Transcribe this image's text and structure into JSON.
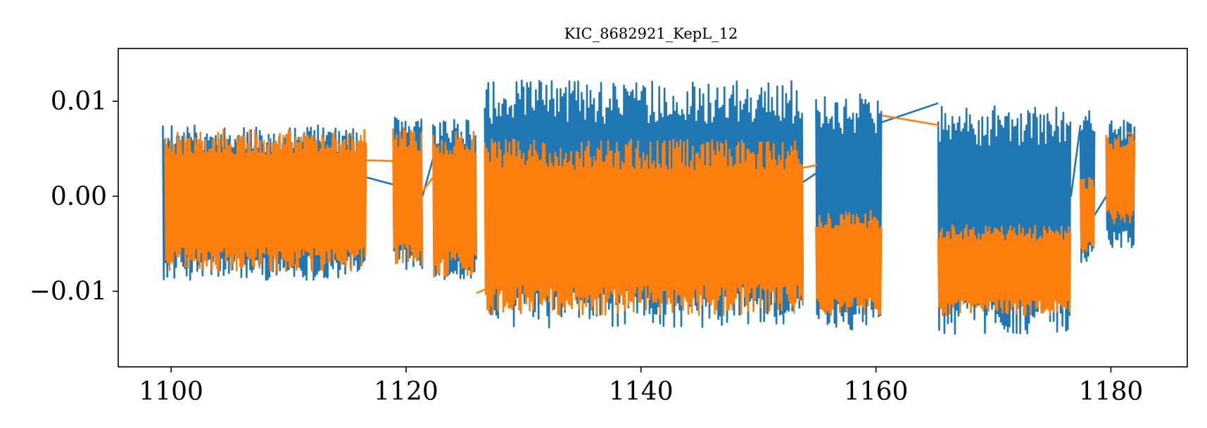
{
  "chart_data": {
    "type": "line",
    "title": "KIC_8682921_KepL_12",
    "xlabel": "",
    "ylabel": "",
    "xlim": [
      1095.5,
      1186.5
    ],
    "ylim": [
      -0.01795,
      0.01555
    ],
    "x_ticks": [
      1100,
      1120,
      1140,
      1160,
      1180
    ],
    "x_tick_labels": [
      "1100",
      "1120",
      "1140",
      "1160",
      "1180"
    ],
    "y_ticks": [
      0.01,
      0.0,
      -0.01
    ],
    "y_tick_labels": [
      "0.01",
      "0.00",
      "−0.01"
    ],
    "grid": false,
    "legend": null,
    "series": [
      {
        "color": "#1f77b4",
        "segments": [
          {
            "x0": 1099.3,
            "x1": 1116.6,
            "high": 0.0075,
            "low": -0.0088
          },
          {
            "x0": 1118.9,
            "x1": 1121.4,
            "high": 0.0083,
            "low": -0.0082
          },
          {
            "x0": 1122.3,
            "x1": 1126.0,
            "high": 0.0082,
            "low": -0.0092
          },
          {
            "x0": 1126.7,
            "x1": 1153.8,
            "high": 0.0122,
            "low": -0.0138
          },
          {
            "x0": 1154.9,
            "x1": 1160.5,
            "high": 0.011,
            "low": -0.014
          },
          {
            "x0": 1165.3,
            "x1": 1176.6,
            "high": 0.0095,
            "low": -0.0145
          },
          {
            "x0": 1177.4,
            "x1": 1178.6,
            "high": 0.009,
            "low": -0.008
          },
          {
            "x0": 1179.6,
            "x1": 1182.0,
            "high": 0.008,
            "low": -0.0055
          }
        ],
        "bridges": [
          [
            [
              1116.6,
              0.002
            ],
            [
              1119.0,
              0.0012
            ]
          ],
          [
            [
              1121.4,
              0.0
            ],
            [
              1122.3,
              0.004
            ]
          ],
          [
            [
              1153.8,
              0.0015
            ],
            [
              1155.0,
              0.0025
            ]
          ],
          [
            [
              1160.5,
              0.0078
            ],
            [
              1165.3,
              0.0098
            ]
          ],
          [
            [
              1176.6,
              0.0
            ],
            [
              1177.4,
              0.0075
            ]
          ],
          [
            [
              1178.6,
              -0.002
            ],
            [
              1179.6,
              0.0
            ]
          ],
          [
            [
              1180.8,
              0.003
            ],
            [
              1182.0,
              0.0035
            ]
          ]
        ]
      },
      {
        "color": "#ff7f0e",
        "segments": [
          {
            "x0": 1099.5,
            "x1": 1116.6,
            "high": 0.007,
            "low": -0.008
          },
          {
            "x0": 1118.9,
            "x1": 1121.4,
            "high": 0.0072,
            "low": -0.0075
          },
          {
            "x0": 1122.3,
            "x1": 1126.0,
            "high": 0.007,
            "low": -0.0085
          },
          {
            "x0": 1126.7,
            "x1": 1153.8,
            "high": 0.006,
            "low": -0.0125
          },
          {
            "x0": 1154.9,
            "x1": 1160.5,
            "high": -0.0015,
            "low": -0.0125
          },
          {
            "x0": 1165.3,
            "x1": 1176.6,
            "high": -0.003,
            "low": -0.0125
          },
          {
            "x0": 1177.4,
            "x1": 1178.6,
            "high": 0.002,
            "low": -0.006
          },
          {
            "x0": 1179.6,
            "x1": 1182.0,
            "high": 0.0065,
            "low": -0.003
          }
        ],
        "bridges": [
          [
            [
              1116.6,
              0.0038
            ],
            [
              1119.0,
              0.0037
            ]
          ],
          [
            [
              1121.4,
              0.0005
            ],
            [
              1122.3,
              0.002
            ]
          ],
          [
            [
              1126.0,
              -0.0102
            ],
            [
              1126.7,
              -0.0098
            ]
          ],
          [
            [
              1153.8,
              0.003
            ],
            [
              1155.0,
              0.0033
            ]
          ],
          [
            [
              1160.5,
              0.0085
            ],
            [
              1165.3,
              0.0075
            ]
          ],
          [
            [
              1181.3,
              0.0067
            ],
            [
              1182.0,
              0.0065
            ]
          ]
        ]
      }
    ]
  }
}
